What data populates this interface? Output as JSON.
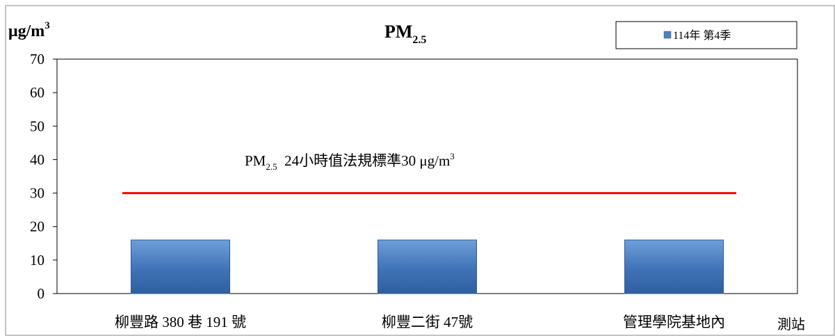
{
  "chart_data": {
    "type": "bar",
    "title": {
      "main": "PM",
      "sub": "2.5"
    },
    "ylabel": {
      "main": "μg/m",
      "sup": "3"
    },
    "xlabel": "測站",
    "categories": [
      "柳豐路 380 巷 191 號",
      "柳豐二街 47號",
      "管理學院基地內"
    ],
    "series": [
      {
        "name": "114年 第4季",
        "values": [
          16,
          16,
          16
        ],
        "color": "#4f81bd"
      }
    ],
    "ylim": [
      0,
      70
    ],
    "yticks": [
      0,
      10,
      20,
      30,
      40,
      50,
      60,
      70
    ],
    "grid": false,
    "legend_position": "top-right",
    "reference_line": {
      "value": 30,
      "color": "#ff0000",
      "label": {
        "prefix": "PM",
        "sub": "2.5",
        "middle": "  24小時值法規標準30 μg/m",
        "sup": "3"
      }
    }
  }
}
